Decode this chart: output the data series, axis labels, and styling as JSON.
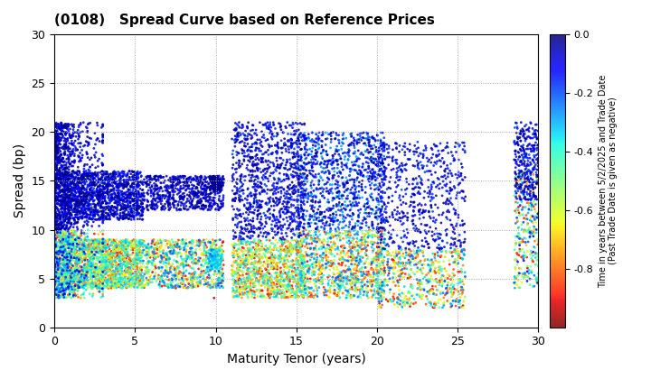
{
  "title": "(0108)   Spread Curve based on Reference Prices",
  "xlabel": "Maturity Tenor (years)",
  "ylabel": "Spread (bp)",
  "colorbar_label": "Time in years between 5/2/2025 and Trade Date\n(Past Trade Date is given as negative)",
  "xlim": [
    0,
    30
  ],
  "ylim": [
    0,
    30
  ],
  "xticks": [
    0,
    5,
    10,
    15,
    20,
    25,
    30
  ],
  "yticks": [
    0,
    5,
    10,
    15,
    20,
    25,
    30
  ],
  "cmap": "jet_r",
  "clim": [
    -1.0,
    0.0
  ],
  "cticks": [
    0.0,
    -0.2,
    -0.4,
    -0.6,
    -0.8
  ],
  "background_color": "#ffffff",
  "grid_color": "#aaaaaa",
  "dot_size_base": 4,
  "seed": 42
}
